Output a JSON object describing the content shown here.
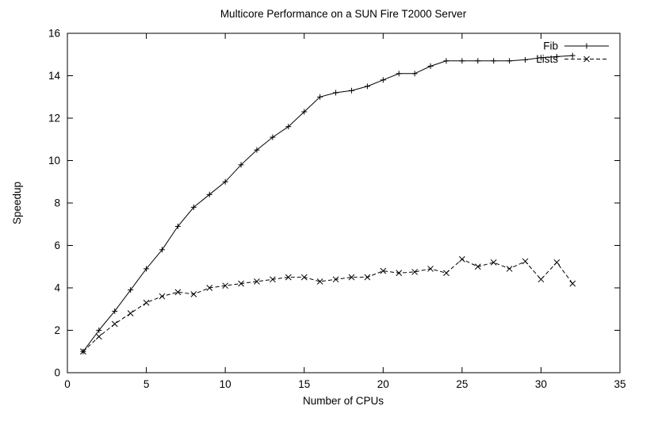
{
  "chart_data": {
    "type": "line",
    "title": "Multicore Performance on a SUN Fire T2000 Server",
    "xlabel": "Number of CPUs",
    "ylabel": "Speedup",
    "xlim": [
      0,
      35
    ],
    "ylim": [
      0,
      16
    ],
    "xticks": [
      0,
      5,
      10,
      15,
      20,
      25,
      30,
      35
    ],
    "yticks": [
      0,
      2,
      4,
      6,
      8,
      10,
      12,
      14,
      16
    ],
    "grid": false,
    "legend_position": "top-right-inside",
    "line_color": "#000000",
    "x": [
      1,
      2,
      3,
      4,
      5,
      6,
      7,
      8,
      9,
      10,
      11,
      12,
      13,
      14,
      15,
      16,
      17,
      18,
      19,
      20,
      21,
      22,
      23,
      24,
      25,
      26,
      27,
      28,
      29,
      30,
      31,
      32
    ],
    "series": [
      {
        "name": "Fib",
        "line": "solid",
        "marker": "plus",
        "values": [
          1.0,
          2.0,
          2.9,
          3.9,
          4.9,
          5.8,
          6.9,
          7.8,
          8.4,
          9.0,
          9.8,
          10.5,
          11.1,
          11.6,
          12.3,
          13.0,
          13.2,
          13.3,
          13.5,
          13.8,
          14.1,
          14.1,
          14.45,
          14.7,
          14.7,
          14.7,
          14.7,
          14.7,
          14.75,
          14.85,
          14.9,
          14.95
        ]
      },
      {
        "name": "Lists",
        "line": "dashed",
        "marker": "cross",
        "values": [
          1.0,
          1.7,
          2.3,
          2.8,
          3.3,
          3.6,
          3.8,
          3.7,
          4.0,
          4.1,
          4.2,
          4.3,
          4.4,
          4.5,
          4.5,
          4.3,
          4.4,
          4.5,
          4.5,
          4.8,
          4.7,
          4.75,
          4.9,
          4.7,
          5.35,
          5.0,
          5.2,
          4.9,
          5.25,
          4.4,
          5.2,
          4.2
        ]
      }
    ]
  }
}
